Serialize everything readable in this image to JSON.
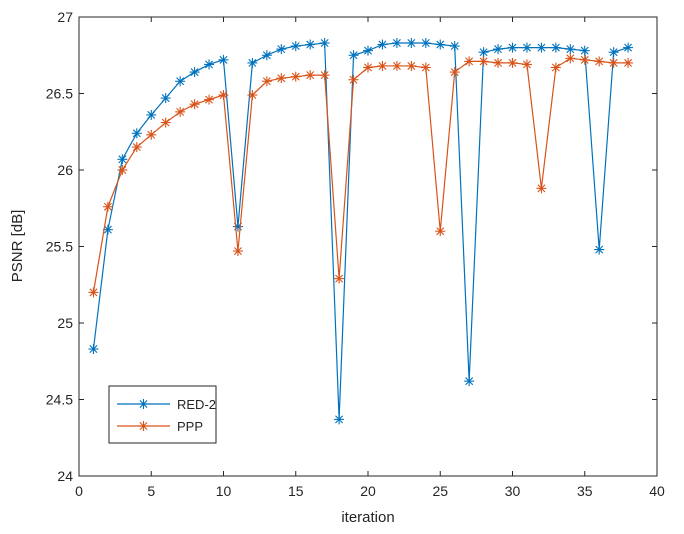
{
  "chart_data": {
    "type": "line",
    "title": "",
    "xlabel": "iteration",
    "ylabel": "PSNR [dB]",
    "xlim": [
      0,
      40
    ],
    "ylim": [
      24,
      27
    ],
    "xticks": [
      0,
      5,
      10,
      15,
      20,
      25,
      30,
      35,
      40
    ],
    "yticks": [
      24,
      24.5,
      25,
      25.5,
      26,
      26.5,
      27
    ],
    "grid": false,
    "legend_position": "bottom-left",
    "marker": "asterisk",
    "x": [
      1,
      2,
      3,
      4,
      5,
      6,
      7,
      8,
      9,
      10,
      11,
      12,
      13,
      14,
      15,
      16,
      17,
      18,
      19,
      20,
      21,
      22,
      23,
      24,
      25,
      26,
      27,
      28,
      29,
      30,
      31,
      32,
      33,
      34,
      35,
      36,
      37,
      38
    ],
    "series": [
      {
        "name": "RED-2",
        "color": "#0072BD",
        "values": [
          24.83,
          25.61,
          26.07,
          26.24,
          26.36,
          26.47,
          26.58,
          26.64,
          26.69,
          26.72,
          25.63,
          26.7,
          26.75,
          26.79,
          26.81,
          26.82,
          26.83,
          24.37,
          26.75,
          26.78,
          26.82,
          26.83,
          26.83,
          26.83,
          26.82,
          26.81,
          24.62,
          26.77,
          26.79,
          26.8,
          26.8,
          26.8,
          26.8,
          26.79,
          26.78,
          25.48,
          26.77,
          26.8
        ]
      },
      {
        "name": "PPP",
        "color": "#D95319",
        "values": [
          25.2,
          25.76,
          26.0,
          26.15,
          26.23,
          26.31,
          26.38,
          26.43,
          26.46,
          26.49,
          25.47,
          26.49,
          26.58,
          26.6,
          26.61,
          26.62,
          26.62,
          25.29,
          26.59,
          26.67,
          26.68,
          26.68,
          26.68,
          26.67,
          25.6,
          26.64,
          26.71,
          26.71,
          26.7,
          26.7,
          26.69,
          25.88,
          26.67,
          26.73,
          26.72,
          26.71,
          26.7,
          26.7
        ]
      }
    ]
  }
}
